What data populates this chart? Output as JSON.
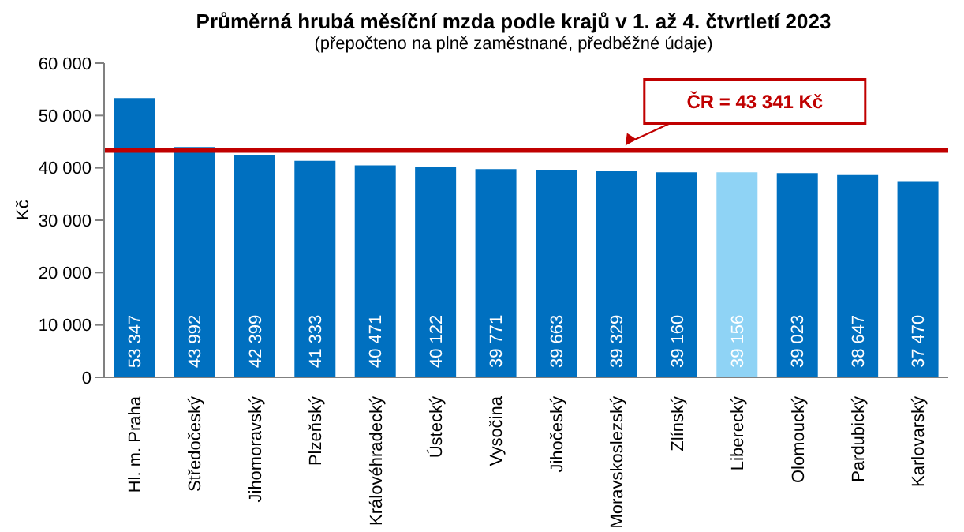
{
  "chart_data": {
    "type": "bar",
    "title": "Průměrná hrubá měsíční mzda podle krajů v 1. až 4. čtvrtletí 2023",
    "subtitle": "(přepočteno na plně zaměstnané, předběžné údaje)",
    "ylabel": "Kč",
    "categories": [
      "Hl. m. Praha",
      "Středočeský",
      "Jihomoravský",
      "Plzeňský",
      "Královéhradecký",
      "Ústecký",
      "Vysočina",
      "Jihočeský",
      "Moravskoslezský",
      "Zlínský",
      "Liberecký",
      "Olomoucký",
      "Pardubický",
      "Karlovarský"
    ],
    "values": [
      53347,
      43992,
      42399,
      41333,
      40471,
      40122,
      39771,
      39663,
      39329,
      39160,
      39156,
      39023,
      38647,
      37470
    ],
    "value_labels": [
      "53 347",
      "43 992",
      "42 399",
      "41 333",
      "40 471",
      "40 122",
      "39 771",
      "39 663",
      "39 329",
      "39 160",
      "39 156",
      "39 023",
      "38 647",
      "37 470"
    ],
    "colors": [
      "#0070c0",
      "#0070c0",
      "#0070c0",
      "#0070c0",
      "#0070c0",
      "#0070c0",
      "#0070c0",
      "#0070c0",
      "#0070c0",
      "#0070c0",
      "#8fd3f5",
      "#0070c0",
      "#0070c0",
      "#0070c0"
    ],
    "ylim": [
      0,
      60000
    ],
    "yticks": [
      0,
      {
        "value": 10000,
        "label": "10 000"
      },
      {
        "value": 20000,
        "label": "20 000"
      },
      {
        "value": 30000,
        "label": "30 000"
      },
      {
        "value": 40000,
        "label": "40 000"
      },
      {
        "value": 50000,
        "label": "50 000"
      },
      {
        "value": 60000,
        "label": "60 000"
      }
    ],
    "ref_lines": [
      {
        "axis": "y",
        "value": 43341,
        "label": "ČR = 43 341 Kč",
        "color": "#c00000"
      }
    ],
    "grid": false
  }
}
